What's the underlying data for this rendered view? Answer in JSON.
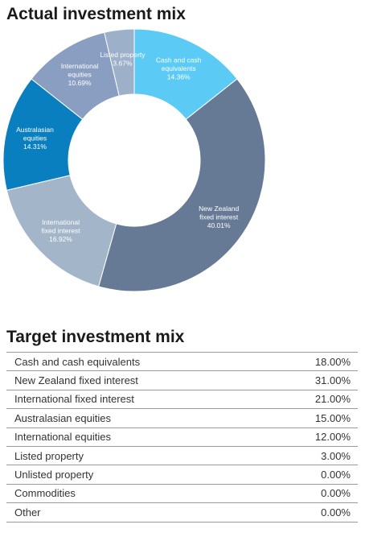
{
  "actual_title": "Actual investment mix",
  "target_title": "Target investment mix",
  "chart_data": {
    "type": "pie",
    "title": "Actual investment mix",
    "slices": [
      {
        "name": "Cash and cash equivalents",
        "label": [
          "Cash and cash",
          "equivalents",
          "14.36%"
        ],
        "value": 14.36,
        "color": "#5BCBF5"
      },
      {
        "name": "New Zealand fixed interest",
        "label": [
          "New Zealand",
          "fixed interest",
          "40.01%"
        ],
        "value": 40.01,
        "color": "#667A96"
      },
      {
        "name": "International fixed interest",
        "label": [
          "International",
          "fixed interest",
          "16.92%"
        ],
        "value": 16.92,
        "color": "#A3B5C8"
      },
      {
        "name": "Australasian equities",
        "label": [
          "Australasian",
          "equities",
          "14.31%"
        ],
        "value": 14.31,
        "color": "#0A7FC0"
      },
      {
        "name": "International equities",
        "label": [
          "International",
          "equities",
          "10.69%"
        ],
        "value": 10.69,
        "color": "#8A9EC1"
      },
      {
        "name": "Listed property",
        "label": [
          "Listed property",
          "3.67%"
        ],
        "value": 3.67,
        "color": "#9DB0C9"
      }
    ]
  },
  "target_table": [
    {
      "label": "Cash and cash equivalents",
      "value": "18.00%"
    },
    {
      "label": "New Zealand fixed interest",
      "value": "31.00%"
    },
    {
      "label": "International fixed interest",
      "value": "21.00%"
    },
    {
      "label": "Australasian equities",
      "value": "15.00%"
    },
    {
      "label": "International equities",
      "value": "12.00%"
    },
    {
      "label": "Listed property",
      "value": "3.00%"
    },
    {
      "label": "Unlisted property",
      "value": "0.00%"
    },
    {
      "label": "Commodities",
      "value": "0.00%"
    },
    {
      "label": "Other",
      "value": "0.00%"
    }
  ]
}
